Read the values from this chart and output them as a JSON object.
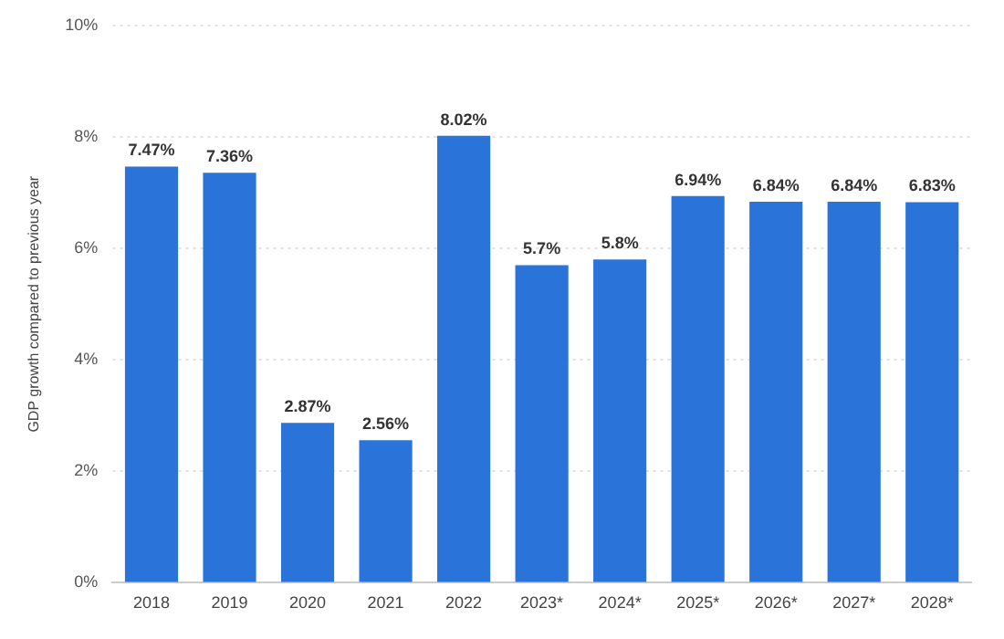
{
  "chart_data": {
    "type": "bar",
    "ylabel": "GDP growth compared to previous year",
    "categories": [
      "2018",
      "2019",
      "2020",
      "2021",
      "2022",
      "2023*",
      "2024*",
      "2025*",
      "2026*",
      "2027*",
      "2028*"
    ],
    "values": [
      7.47,
      7.36,
      2.87,
      2.56,
      8.02,
      5.7,
      5.8,
      6.94,
      6.84,
      6.84,
      6.83
    ],
    "value_labels": [
      "7.47%",
      "7.36%",
      "2.87%",
      "2.56%",
      "8.02%",
      "5.7%",
      "5.8%",
      "6.94%",
      "6.84%",
      "6.84%",
      "6.83%"
    ],
    "color": "#2a73d9",
    "ylim": [
      0,
      10
    ],
    "yticks": [
      {
        "value": 0,
        "label": "0%"
      },
      {
        "value": 2,
        "label": "2%"
      },
      {
        "value": 4,
        "label": "4%"
      },
      {
        "value": 6,
        "label": "6%"
      },
      {
        "value": 8,
        "label": "8%"
      },
      {
        "value": 10,
        "label": "10%"
      }
    ],
    "grid": "y"
  }
}
